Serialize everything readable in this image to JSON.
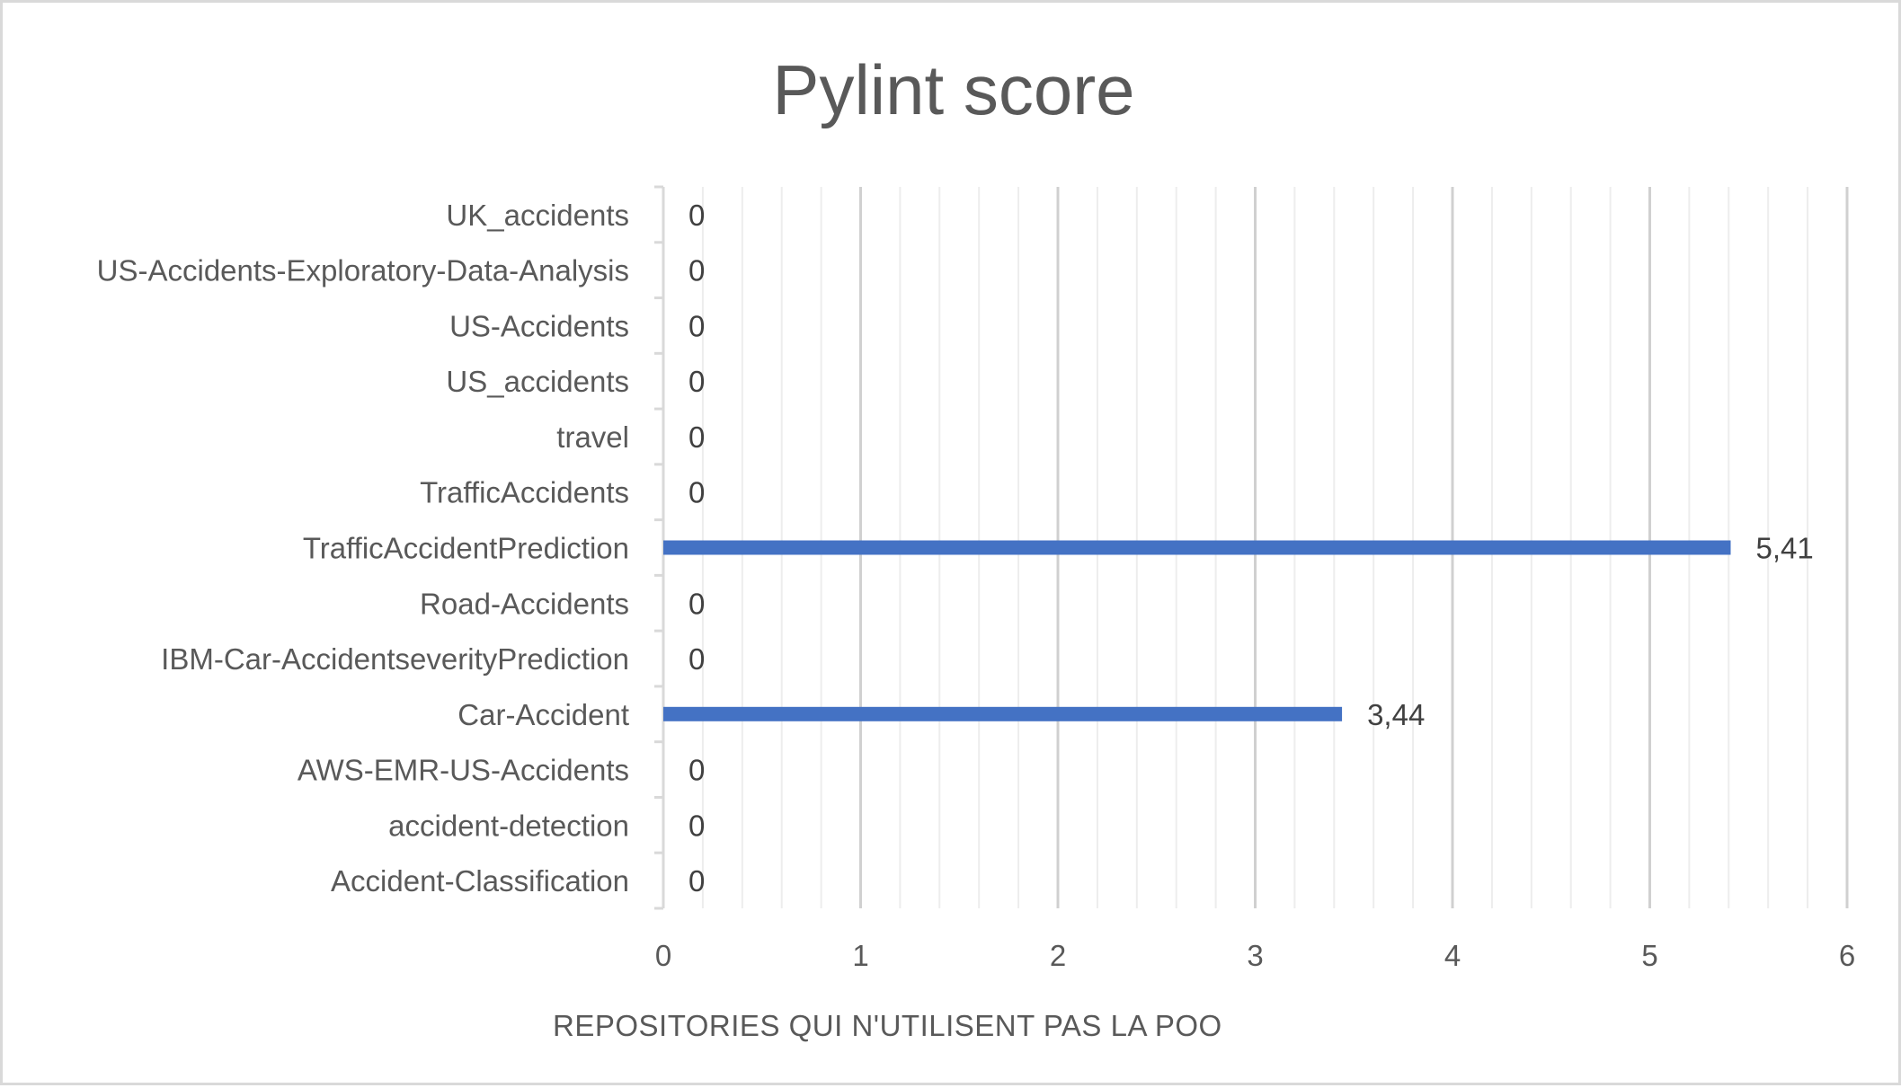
{
  "chart_data": {
    "type": "bar",
    "orientation": "horizontal",
    "title": "Pylint score",
    "xlabel": "REPOSITORIES QUI N'UTILISENT PAS LA POO",
    "ylabel": "",
    "xlim": [
      0,
      6
    ],
    "x_ticks": [
      0,
      1,
      2,
      3,
      4,
      5,
      6
    ],
    "minor_gridlines": true,
    "major_gridlines": true,
    "legend": "none",
    "bar_color": "#4472c4",
    "categories": [
      "UK_accidents",
      "US-Accidents-Exploratory-Data-Analysis",
      "US-Accidents",
      "US_accidents",
      "travel",
      "TrafficAccidents",
      "TrafficAccidentPrediction",
      "Road-Accidents",
      "IBM-Car-AccidentseverityPrediction",
      "Car-Accident",
      "AWS-EMR-US-Accidents",
      "accident-detection",
      "Accident-Classification"
    ],
    "values": [
      0,
      0,
      0,
      0,
      0,
      0,
      5.41,
      0,
      0,
      3.44,
      0,
      0,
      0
    ],
    "data_labels": [
      "0",
      "0",
      "0",
      "0",
      "0",
      "0",
      "5,41",
      "0",
      "0",
      "3,44",
      "0",
      "0",
      "0"
    ]
  }
}
